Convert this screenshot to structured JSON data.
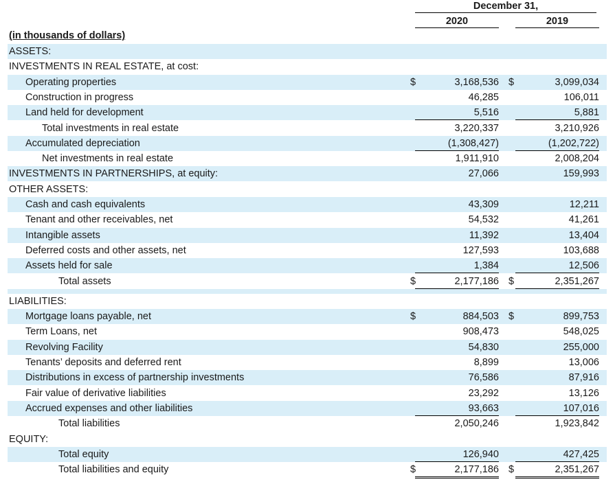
{
  "header": {
    "period_label": "December 31,",
    "col_2020": "2020",
    "col_2019": "2019",
    "units_label": "(in thousands of dollars)"
  },
  "rows": [
    {
      "label": "ASSETS:",
      "indent": 0,
      "band": true
    },
    {
      "label": "INVESTMENTS IN REAL ESTATE, at cost:",
      "indent": 0,
      "band": false
    },
    {
      "label": "Operating properties",
      "indent": 1,
      "band": true,
      "dollar": true,
      "v2020": "3,168,536",
      "v2019": "3,099,034"
    },
    {
      "label": "Construction in progress",
      "indent": 1,
      "band": false,
      "v2020": "46,285",
      "v2019": "106,011"
    },
    {
      "label": "Land held for development",
      "indent": 1,
      "band": true,
      "v2020": "5,516",
      "v2019": "5,881",
      "under": true
    },
    {
      "label": "Total investments in real estate",
      "indent": 2,
      "band": false,
      "v2020": "3,220,337",
      "v2019": "3,210,926"
    },
    {
      "label": "Accumulated depreciation",
      "indent": 1,
      "band": true,
      "v2020": "(1,308,427)",
      "v2019": "(1,202,722)",
      "under": true
    },
    {
      "label": "Net investments in real estate",
      "indent": 2,
      "band": false,
      "v2020": "1,911,910",
      "v2019": "2,008,204"
    },
    {
      "label": "INVESTMENTS IN PARTNERSHIPS, at equity:",
      "indent": 0,
      "band": true,
      "v2020": "27,066",
      "v2019": "159,993"
    },
    {
      "label": "OTHER ASSETS:",
      "indent": 0,
      "band": false
    },
    {
      "label": "Cash and cash equivalents",
      "indent": 1,
      "band": true,
      "v2020": "43,309",
      "v2019": "12,211"
    },
    {
      "label": "Tenant and other receivables, net",
      "indent": 1,
      "band": false,
      "v2020": "54,532",
      "v2019": "41,261"
    },
    {
      "label": "Intangible assets",
      "indent": 1,
      "band": true,
      "v2020": "11,392",
      "v2019": "13,404"
    },
    {
      "label": "Deferred costs and other assets, net",
      "indent": 1,
      "band": false,
      "v2020": "127,593",
      "v2019": "103,688"
    },
    {
      "label": "Assets held for sale",
      "indent": 1,
      "band": true,
      "v2020": "1,384",
      "v2019": "12,506",
      "under": true
    },
    {
      "label": "Total assets",
      "indent": 3,
      "band": false,
      "dollar": true,
      "v2020": "2,177,186",
      "v2019": "2,351,267",
      "double": true
    },
    {
      "gap": true,
      "band": true
    },
    {
      "label": "LIABILITIES:",
      "indent": 0,
      "band": false
    },
    {
      "label": "Mortgage loans payable, net",
      "indent": 1,
      "band": true,
      "dollar": true,
      "v2020": "884,503",
      "v2019": "899,753"
    },
    {
      "label": "Term Loans, net",
      "indent": 1,
      "band": false,
      "v2020": "908,473",
      "v2019": "548,025"
    },
    {
      "label": "Revolving Facility",
      "indent": 1,
      "band": true,
      "v2020": "54,830",
      "v2019": "255,000"
    },
    {
      "label": "Tenants’ deposits and deferred rent",
      "indent": 1,
      "band": false,
      "v2020": "8,899",
      "v2019": "13,006"
    },
    {
      "label": "Distributions in excess of partnership investments",
      "indent": 1,
      "band": true,
      "v2020": "76,586",
      "v2019": "87,916"
    },
    {
      "label": "Fair value of derivative liabilities",
      "indent": 1,
      "band": false,
      "v2020": "23,292",
      "v2019": "13,126"
    },
    {
      "label": "Accrued expenses and other liabilities",
      "indent": 1,
      "band": true,
      "v2020": "93,663",
      "v2019": "107,016",
      "under": true
    },
    {
      "label": "Total liabilities",
      "indent": 3,
      "band": false,
      "v2020": "2,050,246",
      "v2019": "1,923,842"
    },
    {
      "label": "EQUITY:",
      "indent": 0,
      "band": false
    },
    {
      "label": "Total equity",
      "indent": 3,
      "band": true,
      "v2020": "126,940",
      "v2019": "427,425",
      "under": true
    },
    {
      "label": "Total liabilities and equity",
      "indent": 3,
      "band": false,
      "dollar": true,
      "v2020": "2,177,186",
      "v2019": "2,351,267",
      "double": true
    }
  ],
  "dollar_sign": "$",
  "colors": {
    "band": "#d9eef8",
    "text": "#1a1a1a"
  }
}
